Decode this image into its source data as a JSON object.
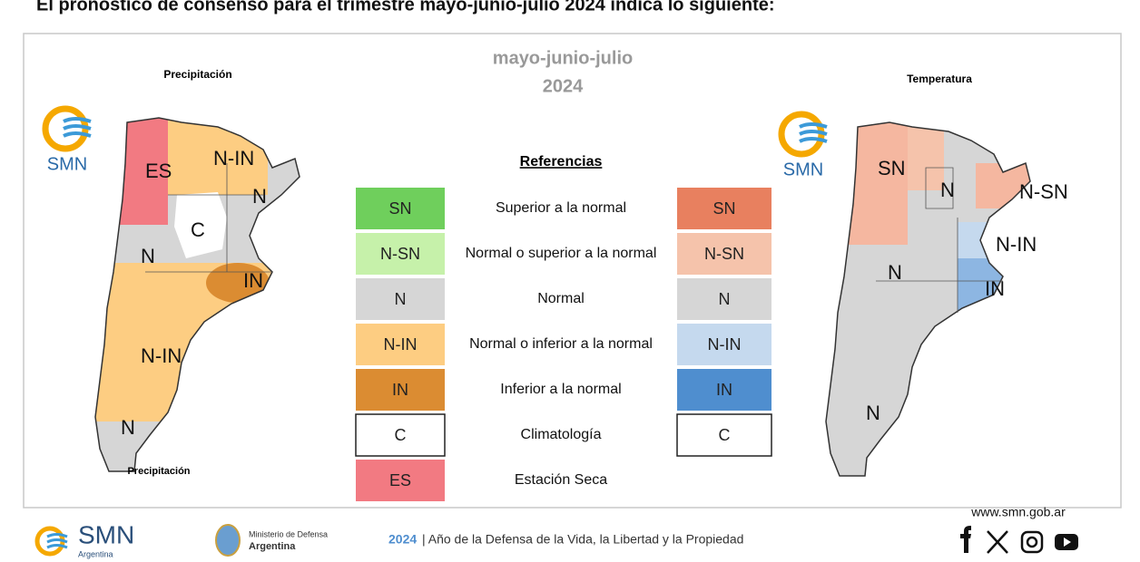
{
  "header": {
    "title": "El pronóstico de consenso para el trimestre mayo-junio-julio 2024 indica lo siguiente:"
  },
  "panel": {
    "period": "mayo-junio-julio",
    "year": "2024"
  },
  "precipitation_map": {
    "title": "Precipitación",
    "logo": "SMN",
    "labels": [
      "ES",
      "N-IN",
      "N",
      "C",
      "N",
      "IN",
      "N-IN",
      "N"
    ]
  },
  "temperature_map": {
    "title": "Temperatura",
    "logo": "SMN",
    "labels": [
      "SN",
      "N",
      "N-SN",
      "N-IN",
      "IN",
      "N",
      "N"
    ]
  },
  "legend": {
    "title": "Referencias",
    "rows": [
      {
        "left": "SN",
        "left_color": "#6fcf5c",
        "text": "Superior a la normal",
        "right": "SN",
        "right_color": "#e8805f"
      },
      {
        "left": "N-SN",
        "left_color": "#c6f1aa",
        "text": "Normal o superior a la normal",
        "right": "N-SN",
        "right_color": "#f5c3ab"
      },
      {
        "left": "N",
        "left_color": "#d6d6d6",
        "text": "Normal",
        "right": "N",
        "right_color": "#d6d6d6"
      },
      {
        "left": "N-IN",
        "left_color": "#fdcd82",
        "text": "Normal o inferior a la normal",
        "right": "N-IN",
        "right_color": "#c5d9ee"
      },
      {
        "left": "IN",
        "left_color": "#db8c32",
        "text": "Inferior a la normal",
        "right": "IN",
        "right_color": "#4f8ecf"
      },
      {
        "left": "C",
        "left_color": "#ffffff",
        "text": "Climatología",
        "right": "C",
        "right_color": "#ffffff"
      },
      {
        "left": "ES",
        "left_color": "#f27a82",
        "text": "Estación Seca"
      }
    ]
  },
  "footer": {
    "website": "www.smn.gob.ar",
    "logo": "SMN",
    "logo_sub": "Argentina",
    "ministry": "Ministerio de Defensa",
    "ministry_sub": "Argentina",
    "year": "2024",
    "motto": "| Año de la Defensa de la Vida, la Libertad y la Propiedad"
  }
}
